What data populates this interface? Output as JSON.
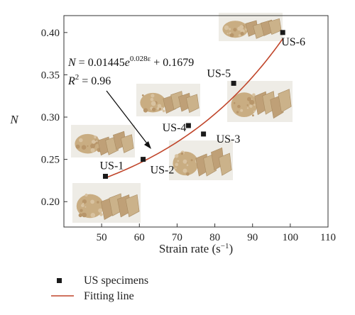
{
  "chart_data": {
    "type": "scatter",
    "xlabel": "Strain rate (s−1)",
    "ylabel": "N",
    "xlim": [
      40,
      110
    ],
    "ylim": [
      0.17,
      0.42
    ],
    "xticks": [
      50,
      60,
      70,
      80,
      90,
      100,
      110
    ],
    "yticks": [
      0.2,
      0.25,
      0.3,
      0.35,
      0.4
    ],
    "ytick_labels": [
      "0.20",
      "0.25",
      "0.30",
      "0.35",
      "0.40"
    ],
    "series": [
      {
        "name": "US specimens",
        "marker": "square",
        "color": "#1a1a1a",
        "points": [
          {
            "label": "US-1",
            "x": 51,
            "y": 0.23
          },
          {
            "label": "US-2",
            "x": 61,
            "y": 0.25
          },
          {
            "label": "US-4",
            "x": 73,
            "y": 0.29
          },
          {
            "label": "US-3",
            "x": 77,
            "y": 0.28
          },
          {
            "label": "US-5",
            "x": 85,
            "y": 0.34
          },
          {
            "label": "US-6",
            "x": 98,
            "y": 0.4
          }
        ]
      },
      {
        "name": "Fitting line",
        "type": "line",
        "color": "#c0452a",
        "model": {
          "a": 0.01445,
          "b": 0.028,
          "c": 0.1679
        },
        "x_range": [
          51,
          98
        ]
      }
    ],
    "annotation": {
      "eq_lhs": "N",
      "eq_mid": " = 0.01445",
      "eq_e": "e",
      "eq_exp": "0.028ε",
      "eq_rhs": " + 0.1679",
      "r2_sym": "R",
      "r2_sup": "2",
      "r2_val": " = 0.96"
    },
    "legend": {
      "position": "bottom-left"
    }
  }
}
